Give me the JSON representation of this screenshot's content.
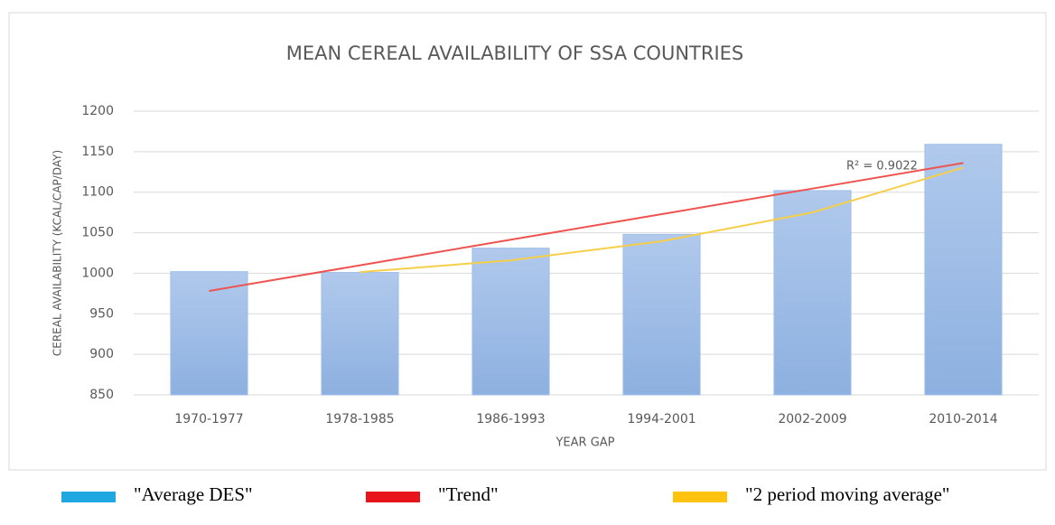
{
  "chart_data": {
    "type": "bar",
    "title": "MEAN CEREAL AVAILABILITY OF SSA COUNTRIES",
    "x_label": "YEAR GAP",
    "y_label": "CEREAL AVAILABILITY (KCAL/CAP/DAY)",
    "annotation": "R² = 0.9022",
    "categories": [
      "1970-1977",
      "1978-1985",
      "1986-1993",
      "1994-2001",
      "2002-2009",
      "2010-2014"
    ],
    "series": [
      {
        "name": "\"Average DES\"",
        "type": "bar",
        "color": "#9fbfe8",
        "legend_color": "#1ea7e1",
        "values": [
          1002,
          1001,
          1031,
          1048,
          1102,
          1159
        ]
      },
      {
        "name": "\"Trend\"",
        "type": "line",
        "color": "#ef5350",
        "legend_color": "#e8141c",
        "values": [
          978.2,
          1009.8,
          1041.4,
          1072.9,
          1104.5,
          1136.1
        ]
      },
      {
        "name": "\"2 period moving average\"",
        "type": "line",
        "color": "#f5cf4a",
        "legend_color": "#ffc20e",
        "values": [
          null,
          1001.5,
          1016,
          1039.5,
          1075,
          1130.5
        ]
      }
    ],
    "ylim": [
      850,
      1200
    ],
    "yticks": [
      850,
      900,
      950,
      1000,
      1050,
      1100,
      1150,
      1200
    ],
    "grid": true
  }
}
